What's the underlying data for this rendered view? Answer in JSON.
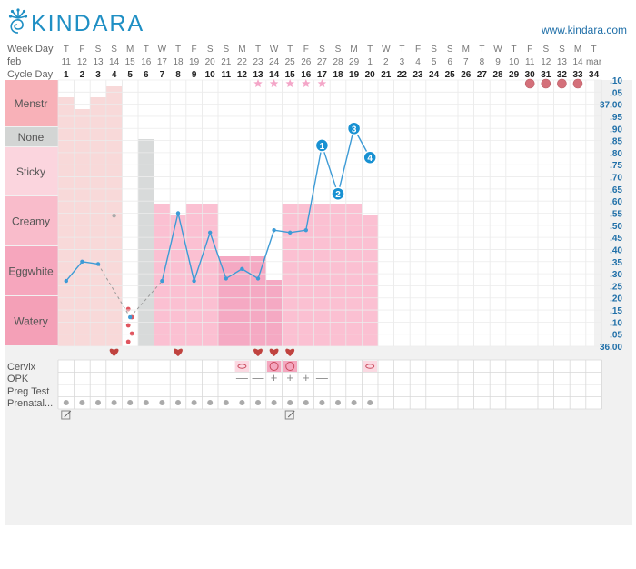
{
  "header": {
    "logo_text": "KINDARA",
    "url": "www.kindara.com"
  },
  "colors": {
    "accent": "#1f8fc4",
    "menstr": "#f7cbcb",
    "fluid_sticky": "#fbd3df",
    "fluid_creamy": "#fbbfd3",
    "fluid_eggwhite": "#f5a8c2",
    "none": "#d3d5d4",
    "heart": "#c0433f",
    "star": "#f4a6c8",
    "dot": "#d4707a"
  },
  "chart_data": {
    "type": "fertility-chart",
    "row_labels": {
      "week_day": "Week Day",
      "month": "feb",
      "cycle_day": "Cycle Day",
      "cervix": "Cervix",
      "opk": "OPK",
      "preg_test": "Preg Test",
      "prenatal": "Prenatal..."
    },
    "week_days": [
      "T",
      "F",
      "S",
      "S",
      "M",
      "T",
      "W",
      "T",
      "F",
      "S",
      "S",
      "M",
      "T",
      "W",
      "T",
      "F",
      "S",
      "S",
      "M",
      "T",
      "W",
      "T",
      "F",
      "S",
      "S",
      "M",
      "T",
      "W",
      "T",
      "F",
      "S",
      "S",
      "M",
      "T"
    ],
    "dates": [
      "11",
      "12",
      "13",
      "14",
      "15",
      "16",
      "17",
      "18",
      "19",
      "20",
      "21",
      "22",
      "23",
      "24",
      "25",
      "26",
      "27",
      "28",
      "29",
      "1",
      "2",
      "3",
      "4",
      "5",
      "6",
      "7",
      "8",
      "9",
      "10",
      "11",
      "12",
      "13",
      "14",
      "mar"
    ],
    "cycle_days": [
      "1",
      "2",
      "3",
      "4",
      "5",
      "6",
      "7",
      "8",
      "9",
      "10",
      "11",
      "12",
      "13",
      "14",
      "15",
      "16",
      "17",
      "18",
      "19",
      "20",
      "21",
      "22",
      "23",
      "24",
      "25",
      "26",
      "27",
      "28",
      "29",
      "30",
      "31",
      "32",
      "33",
      "34"
    ],
    "fluid_categories": [
      "Menstr",
      "None",
      "Sticky",
      "Creamy",
      "Eggwhite",
      "Watery"
    ],
    "temp_ticks": [
      ".10",
      ".05",
      "37.00",
      ".95",
      ".90",
      ".85",
      ".80",
      ".75",
      ".70",
      ".65",
      ".60",
      ".55",
      ".50",
      ".45",
      ".40",
      ".35",
      ".30",
      ".25",
      ".20",
      ".15",
      ".10",
      ".05",
      "36.00"
    ],
    "temp_range": [
      36.0,
      37.1
    ],
    "temperatures": [
      {
        "day": 1,
        "temp": 36.27
      },
      {
        "day": 2,
        "temp": 36.35
      },
      {
        "day": 3,
        "temp": 36.34
      },
      {
        "day": 4,
        "temp": 36.54,
        "excluded": true
      },
      {
        "day": 5,
        "temp": 36.12
      },
      {
        "day": 7,
        "temp": 36.27
      },
      {
        "day": 8,
        "temp": 36.55
      },
      {
        "day": 9,
        "temp": 36.27
      },
      {
        "day": 10,
        "temp": 36.47
      },
      {
        "day": 11,
        "temp": 36.28
      },
      {
        "day": 12,
        "temp": 36.32
      },
      {
        "day": 13,
        "temp": 36.28
      },
      {
        "day": 14,
        "temp": 36.48
      },
      {
        "day": 15,
        "temp": 36.47
      },
      {
        "day": 16,
        "temp": 36.48
      },
      {
        "day": 17,
        "temp": 36.83,
        "label": "1"
      },
      {
        "day": 18,
        "temp": 36.63,
        "label": "2"
      },
      {
        "day": 19,
        "temp": 36.9,
        "label": "3"
      },
      {
        "day": 20,
        "temp": 36.78,
        "label": "4"
      }
    ],
    "menstruation": [
      {
        "day": 1,
        "level": "high"
      },
      {
        "day": 2,
        "level": "mid"
      },
      {
        "day": 3,
        "level": "high"
      },
      {
        "day": 4,
        "level": "top"
      }
    ],
    "fluid": [
      {
        "day": 6,
        "type": "None"
      },
      {
        "day": 7,
        "type": "Creamy"
      },
      {
        "day": 8,
        "type": "Creamy"
      },
      {
        "day": 9,
        "type": "Creamy"
      },
      {
        "day": 10,
        "type": "Creamy"
      },
      {
        "day": 11,
        "type": "Eggwhite"
      },
      {
        "day": 12,
        "type": "Eggwhite"
      },
      {
        "day": 13,
        "type": "Eggwhite"
      },
      {
        "day": 14,
        "type": "Eggwhite"
      },
      {
        "day": 15,
        "type": "Creamy"
      },
      {
        "day": 16,
        "type": "Creamy"
      },
      {
        "day": 17,
        "type": "Creamy"
      },
      {
        "day": 18,
        "type": "Creamy"
      },
      {
        "day": 19,
        "type": "Creamy"
      },
      {
        "day": 20,
        "type": "Creamy"
      }
    ],
    "spotting_day": 5,
    "stars": [
      13,
      14,
      15,
      16,
      17
    ],
    "cycle_end_dots": [
      30,
      31,
      32,
      33
    ],
    "intercourse_days": [
      4,
      8,
      13,
      14,
      15
    ],
    "cervix": [
      {
        "day": 12,
        "mark": "closed"
      },
      {
        "day": 14,
        "mark": "open"
      },
      {
        "day": 15,
        "mark": "open"
      },
      {
        "day": 20,
        "mark": "closed"
      }
    ],
    "opk": [
      {
        "day": 12,
        "result": "—"
      },
      {
        "day": 13,
        "result": "—"
      },
      {
        "day": 14,
        "result": "+"
      },
      {
        "day": 15,
        "result": "+"
      },
      {
        "day": 16,
        "result": "+"
      },
      {
        "day": 17,
        "result": "—"
      }
    ],
    "prenatal_days": [
      1,
      2,
      3,
      4,
      5,
      6,
      7,
      8,
      9,
      10,
      11,
      12,
      13,
      14,
      15,
      16,
      17,
      18,
      19,
      20
    ],
    "note_days": [
      1,
      15
    ]
  }
}
